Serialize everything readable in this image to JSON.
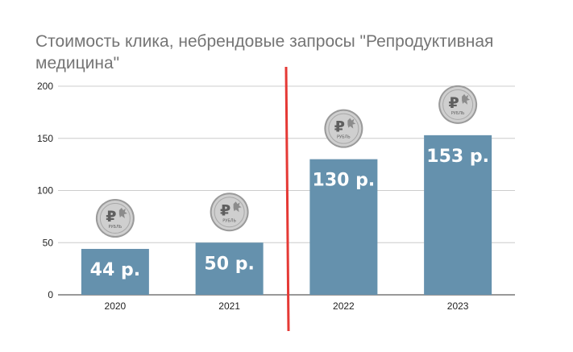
{
  "chart_data": {
    "type": "bar",
    "title_lines": [
      "Стоимость клика, небрендовые запросы \"Репродуктивная",
      "медицина\""
    ],
    "categories": [
      "2020",
      "2021",
      "2022",
      "2023"
    ],
    "values": [
      44,
      50,
      130,
      153
    ],
    "data_labels": [
      "44 р.",
      "50 р.",
      "130 р.",
      "153 р."
    ],
    "y_ticks": [
      "0",
      "50",
      "100",
      "150",
      "200"
    ],
    "ylim": [
      0,
      200
    ],
    "grid": true,
    "xlabel": "",
    "ylabel": "",
    "legend": "none",
    "bar_color": "#6591ad",
    "grid_color": "#cccccc",
    "marker_color": "#e53935",
    "marker_between": [
      "2021",
      "2022"
    ],
    "coin_icon": "ruble-coin-icon",
    "coin_text": "РУБЛЬ"
  }
}
